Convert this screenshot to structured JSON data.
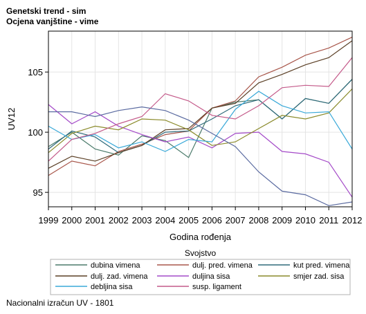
{
  "header": {
    "title": "Genetski trend - sim",
    "subtitle": "Ocjena vanjštine - vime"
  },
  "footer": {
    "note": "Nacionalni izračun UV - 1801"
  },
  "chart_data": {
    "type": "line",
    "xlabel": "Godina rođenja",
    "ylabel": "UV12",
    "x": [
      1999,
      2000,
      2001,
      2002,
      2003,
      2004,
      2005,
      2006,
      2007,
      2008,
      2009,
      2010,
      2011,
      2012
    ],
    "yticks": [
      95,
      100,
      105
    ],
    "ylim": [
      93.8,
      108.4
    ],
    "grid": true,
    "legend": {
      "title": "Svojstvo",
      "placement": "bottom"
    },
    "series": [
      {
        "name": "dubina vimena",
        "color": "#4a7a6a",
        "values": [
          98.8,
          100.0,
          98.6,
          98.1,
          99.7,
          99.3,
          97.9,
          102.0,
          102.5,
          102.7,
          101.1,
          102.8,
          102.4,
          104.4
        ]
      },
      {
        "name": "dulj. pred. vimena",
        "color": "#a8564a",
        "values": [
          96.4,
          97.6,
          97.2,
          98.4,
          99.0,
          99.8,
          100.1,
          102.0,
          102.6,
          104.6,
          105.4,
          106.4,
          107.0,
          107.9
        ]
      },
      {
        "name": "kut pred. vimena",
        "color": "#2e6a7a",
        "values": [
          98.6,
          100.1,
          99.6,
          98.3,
          98.9,
          100.0,
          100.1,
          101.1,
          102.2,
          102.7,
          101.1,
          102.8,
          102.4,
          104.4
        ]
      },
      {
        "name": "dulj. zad. vimena",
        "color": "#5a3e24",
        "values": [
          97.0,
          98.0,
          97.6,
          98.3,
          98.9,
          100.2,
          100.3,
          102.0,
          102.4,
          104.1,
          104.8,
          105.6,
          106.2,
          107.6
        ]
      },
      {
        "name": "duljina sisa",
        "color": "#a44ac8",
        "values": [
          102.3,
          100.7,
          101.7,
          100.5,
          99.8,
          99.2,
          99.6,
          98.7,
          99.9,
          100.0,
          98.4,
          98.2,
          97.5,
          94.6
        ]
      },
      {
        "name": "smjer zad. sisa",
        "color": "#8a8a2a",
        "values": [
          98.3,
          99.9,
          100.5,
          100.2,
          101.1,
          101.0,
          100.2,
          98.9,
          99.2,
          100.3,
          101.4,
          101.1,
          101.6,
          103.6
        ]
      },
      {
        "name": "debljina sisa",
        "color": "#38a8d8",
        "values": [
          100.5,
          99.4,
          99.8,
          98.7,
          99.2,
          98.4,
          99.4,
          99.2,
          101.9,
          103.4,
          102.2,
          101.6,
          101.7,
          98.6
        ]
      },
      {
        "name": "susp. ligament",
        "color": "#c45a8a",
        "values": [
          97.6,
          99.4,
          99.9,
          100.7,
          101.3,
          103.2,
          102.6,
          101.4,
          101.1,
          102.2,
          103.7,
          103.9,
          103.8,
          106.2
        ]
      },
      {
        "name": "",
        "color": "#5a6aa0",
        "values": [
          101.7,
          101.7,
          101.3,
          101.8,
          102.1,
          101.8,
          101.0,
          99.9,
          98.8,
          96.7,
          95.1,
          94.8,
          93.9,
          94.2
        ]
      }
    ]
  }
}
